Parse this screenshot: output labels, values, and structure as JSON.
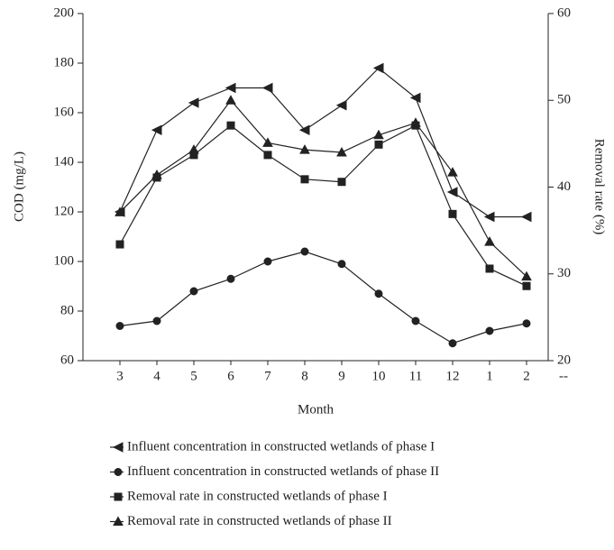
{
  "chart_data": {
    "type": "line",
    "categories": [
      "3",
      "4",
      "5",
      "6",
      "7",
      "8",
      "9",
      "10",
      "11",
      "12",
      "1",
      "2",
      "--"
    ],
    "x_label": "Month",
    "y_label": "COD (mg/L)",
    "y2_label": "Removal rate (%)",
    "ylim": [
      60,
      200
    ],
    "yticks": [
      60,
      80,
      100,
      120,
      140,
      160,
      180,
      200
    ],
    "y2lim": [
      20,
      60
    ],
    "y2ticks": [
      20,
      30,
      40,
      50,
      60
    ],
    "grid": false,
    "legend": "bottom",
    "series": [
      {
        "name": "Influent concentration in constructed wetlands of phase I",
        "color": "#222222",
        "marker": "triangle-left",
        "values": [
          120,
          153,
          164,
          170,
          170,
          153,
          163,
          178,
          166,
          128,
          118,
          118,
          null
        ]
      },
      {
        "name": "Influent concentration in constructed wetlands of phase II",
        "color": "#222222",
        "marker": "circle",
        "values": [
          74,
          76,
          88,
          93,
          100,
          104,
          99,
          87,
          76,
          67,
          72,
          75,
          null
        ]
      },
      {
        "name": "Removal rate in constructed wetlands of phase I",
        "color": "#222222",
        "marker": "square",
        "axis": "y2",
        "values": [
          33.4,
          41.1,
          43.7,
          47.1,
          43.7,
          40.9,
          40.6,
          44.9,
          47.1,
          36.9,
          30.6,
          28.6,
          null
        ]
      },
      {
        "name": "Removal rate in constructed wetlands of phase II",
        "color": "#222222",
        "marker": "triangle-up",
        "axis": "y2",
        "values": [
          37.1,
          41.4,
          44.3,
          50.0,
          45.1,
          44.3,
          44.0,
          46.0,
          47.4,
          41.7,
          33.7,
          29.7,
          null
        ]
      }
    ]
  }
}
